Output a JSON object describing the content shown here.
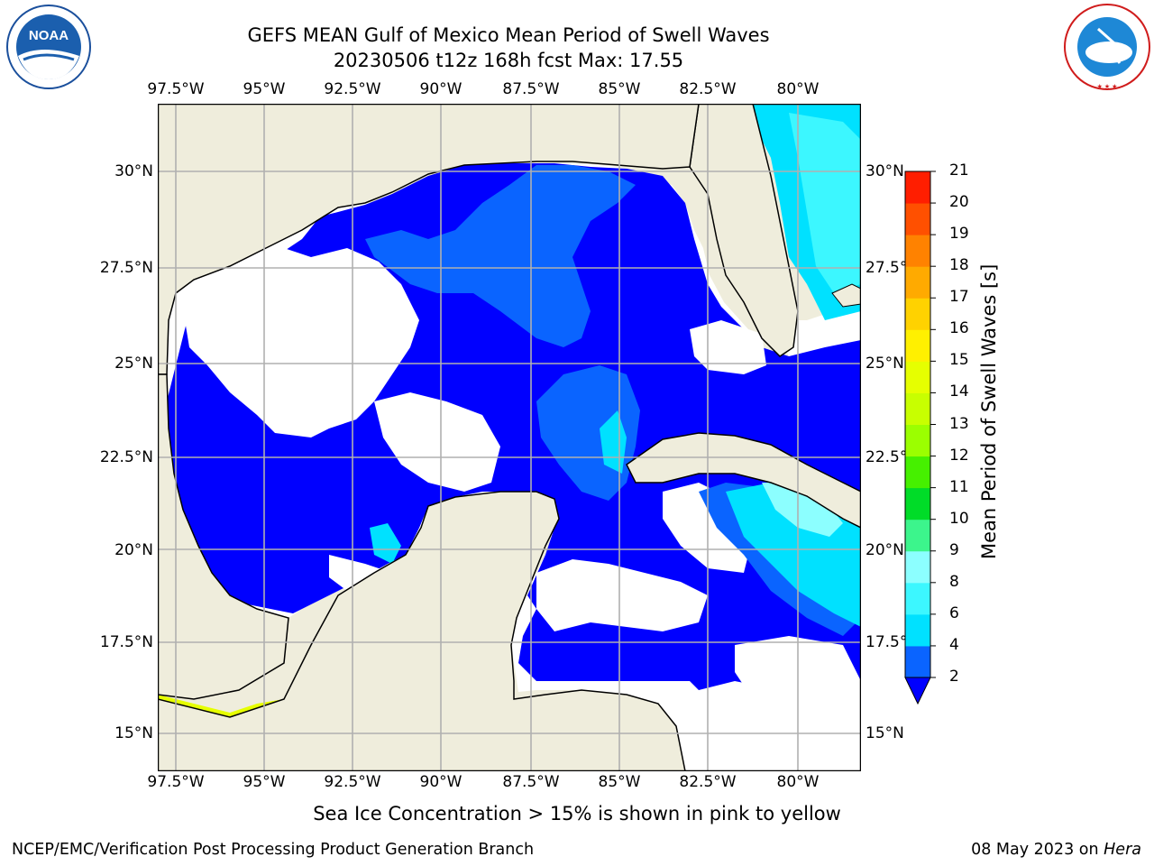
{
  "title": {
    "line1": "GEFS MEAN Gulf of Mexico Mean Period of Swell Waves",
    "line2": "20230506 t12z 168h fcst   Max: 17.55"
  },
  "logos": {
    "left": "noaa-logo",
    "left_text": "NOAA",
    "left_ring_text": "NATIONAL OCEANIC AND ATMOSPHERIC ADMINISTRATION · U.S. DEPARTMENT OF COMMERCE",
    "right": "nws-logo",
    "right_ring_text": "NATIONAL WEATHER SERVICE"
  },
  "map": {
    "longitude_ticks": [
      "97.5°W",
      "95°W",
      "92.5°W",
      "90°W",
      "87.5°W",
      "85°W",
      "82.5°W",
      "80°W"
    ],
    "latitude_ticks_left": [
      "30°N",
      "27.5°N",
      "25°N",
      "22.5°N",
      "20°N",
      "17.5°N",
      "15°N"
    ],
    "latitude_ticks_right": [
      "30°N",
      "27.5°",
      "25°N",
      "22.5°",
      "20°N",
      "17.5°",
      "15°N"
    ],
    "extent": {
      "lon_min": -98,
      "lon_max": -78.3,
      "lat_min": 14,
      "lat_max": 31.9
    },
    "gridlines": true,
    "colors": {
      "land": "#efeddc",
      "ocean_blank": "#ffffff",
      "grid": "#b0b0b0"
    }
  },
  "colorbar": {
    "label": "Mean Period of Swell Waves [s]",
    "ticks": [
      "2",
      "4",
      "6",
      "8",
      "9",
      "10",
      "11",
      "12",
      "13",
      "14",
      "15",
      "16",
      "17",
      "18",
      "19",
      "20",
      "21"
    ],
    "colors": [
      "#0a64ff",
      "#00e1ff",
      "#3cf7ff",
      "#8cffff",
      "#3cf58c",
      "#00dc28",
      "#46f000",
      "#9bff00",
      "#c8ff00",
      "#e6ff00",
      "#fff000",
      "#ffd200",
      "#ffaa00",
      "#ff8200",
      "#ff5000",
      "#ff1e00"
    ],
    "extend_color": "#0000ff"
  },
  "note": "Sea Ice Concentration > 15% is shown in pink to yellow",
  "footer": {
    "left": "NCEP/EMC/Verification Post Processing Product Generation Branch",
    "date": "08 May 2023 on ",
    "host": "Hera"
  }
}
